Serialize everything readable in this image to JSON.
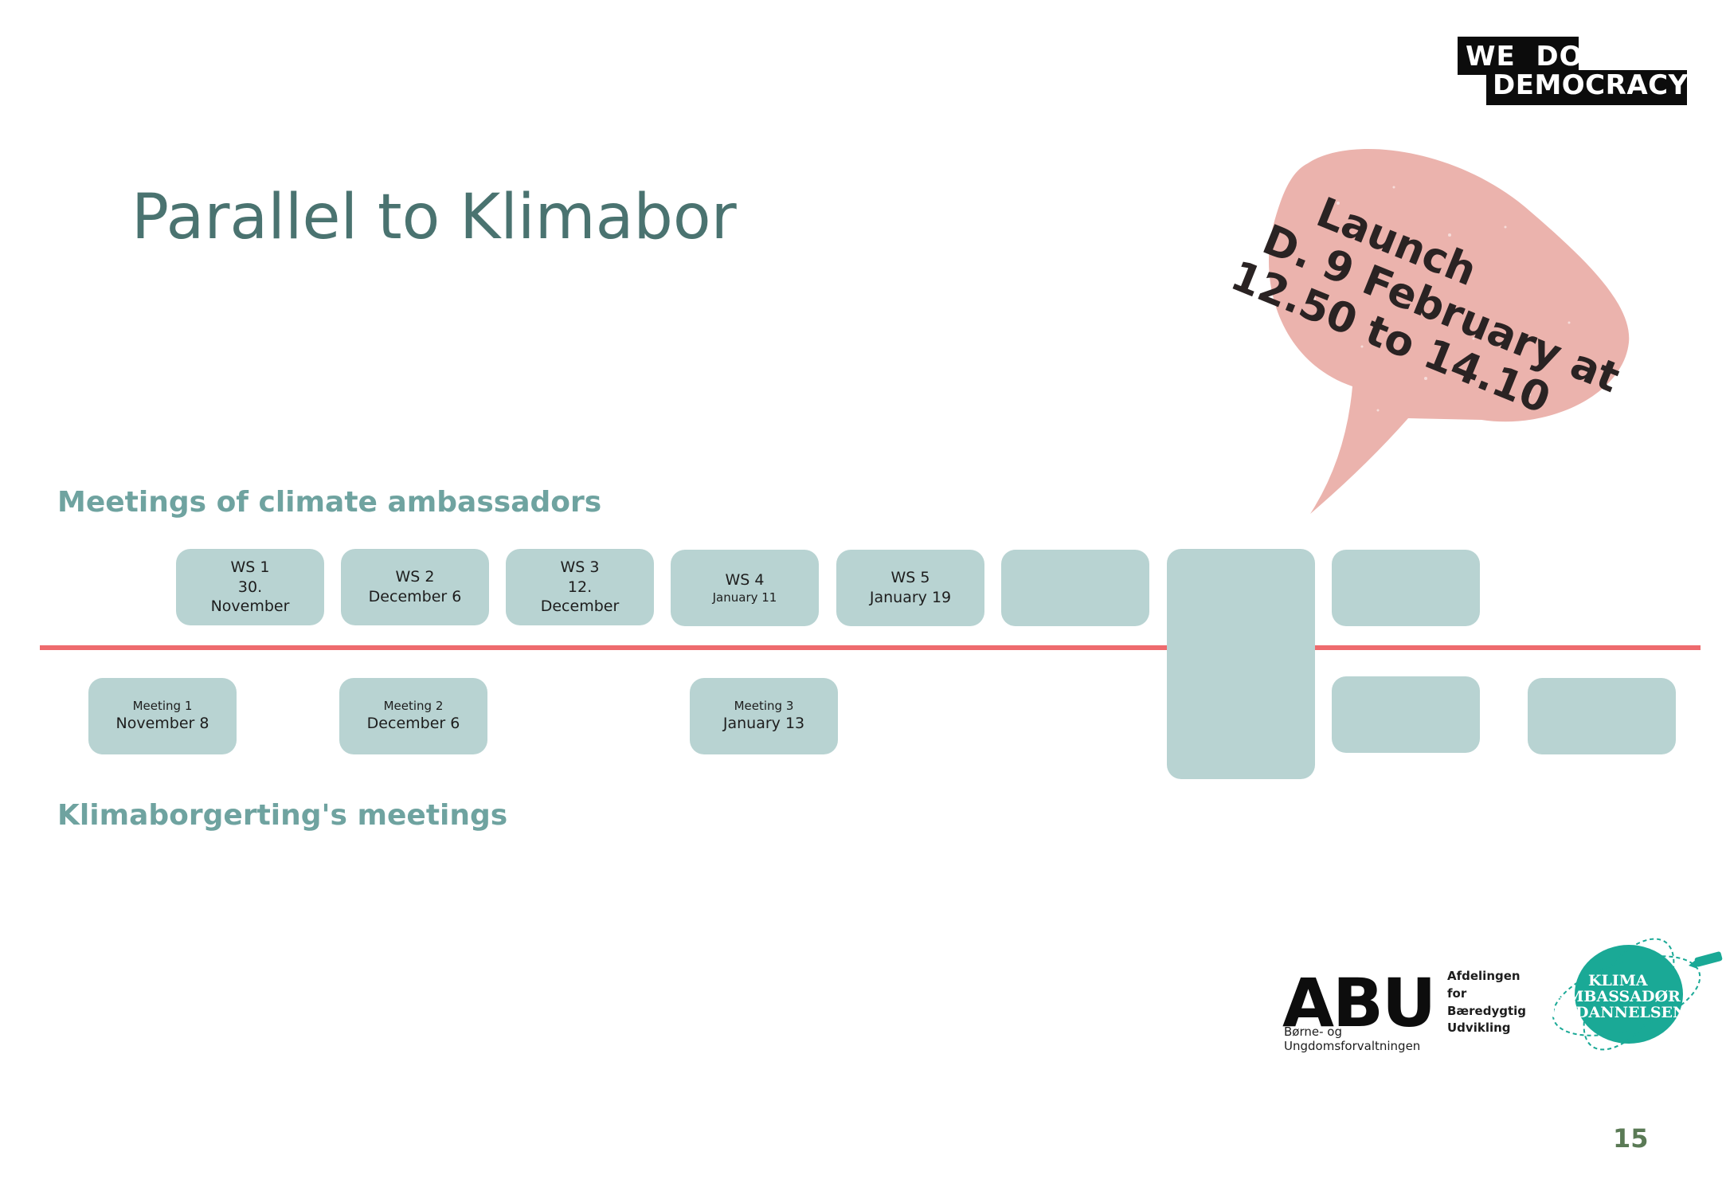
{
  "logo": {
    "line1": "WE  DO",
    "line2": "DEMOCRACY"
  },
  "title": "Parallel to Klimabor",
  "speech": {
    "line1": "Launch",
    "line2": "D. 9 February at",
    "line3": "12.50 to 14.10"
  },
  "sections": {
    "ambassadors": "Meetings of climate ambassadors",
    "klimaborgerting": "Klimaborgerting's meetings"
  },
  "workshops": [
    {
      "l1": "WS 1",
      "l2": "30.",
      "l3": "November"
    },
    {
      "l1": "WS 2",
      "l2": "December 6"
    },
    {
      "l1": "WS 3",
      "l2": "12.",
      "l3": "December"
    },
    {
      "l1": "WS 4",
      "l2": "January 11"
    },
    {
      "l1": "WS 5",
      "l2": "January 19"
    }
  ],
  "meetings": [
    {
      "l1": "Meeting 1",
      "l2": "November 8"
    },
    {
      "l1": "Meeting 2",
      "l2": "December 6"
    },
    {
      "l1": "Meeting 3",
      "l2": "January 13"
    }
  ],
  "abu": {
    "name": "ABU",
    "side1": "Afdelingen for",
    "side2": "Bæredygtig",
    "side3": "Udvikling",
    "sub": "Børne- og Ungdomsforvaltningen"
  },
  "klima_logo": {
    "line1": "KLIMA",
    "line2": "AMBASSADØR",
    "line3": "UDDANNELSEN"
  },
  "page_number": "15",
  "colors": {
    "box": "#b8d3d2",
    "timeline": "#ee6b6e",
    "bubble": "#ebb3ad",
    "title": "#4a7370",
    "section": "#6fa3a0",
    "klima": "#1aa996"
  }
}
